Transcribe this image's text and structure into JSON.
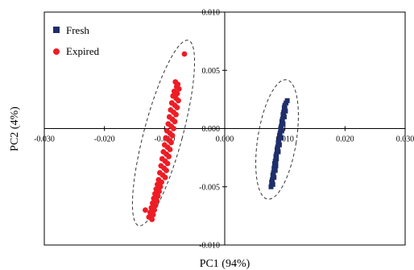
{
  "chart_data": {
    "type": "scatter",
    "title": "",
    "xlabel": "PC1 (94%)",
    "ylabel": "PC2 (4%)",
    "xlim": [
      -0.03,
      0.03
    ],
    "ylim": [
      -0.01,
      0.01
    ],
    "x_ticks": [
      "-0.030",
      "-0.020",
      "-0.010",
      "0.000",
      "0.010",
      "0.020",
      "0.030"
    ],
    "y_ticks": [
      "0.010",
      "0.005",
      "0.000",
      "-0.005",
      "-0.010"
    ],
    "legend_position": "top-left",
    "grid": false,
    "confidence_ellipses": true,
    "series": [
      {
        "name": "Fresh",
        "marker": "square",
        "color": "#1f2e6b",
        "x": [
          0.0104,
          0.0102,
          0.01,
          0.0099,
          0.01,
          0.0098,
          0.0097,
          0.0099,
          0.0096,
          0.0095,
          0.0097,
          0.0094,
          0.0093,
          0.0095,
          0.0092,
          0.0091,
          0.0093,
          0.009,
          0.0089,
          0.0091,
          0.0088,
          0.0087,
          0.0089,
          0.0086,
          0.0085,
          0.0086,
          0.0084,
          0.0083,
          0.0085,
          0.0082,
          0.0084,
          0.0081,
          0.008,
          0.0082,
          0.0079,
          0.0078,
          0.008,
          0.0077,
          0.0085,
          0.0094,
          0.0101,
          0.0088
        ],
        "y": [
          0.0024,
          0.0022,
          0.002,
          0.0018,
          0.0016,
          0.0014,
          0.0012,
          0.001,
          0.0008,
          0.0006,
          0.0004,
          0.0002,
          0.0,
          -0.0002,
          -0.0004,
          -0.0006,
          -0.0008,
          -0.001,
          -0.0012,
          -0.0014,
          -0.0016,
          -0.0018,
          -0.002,
          -0.0022,
          -0.0024,
          -0.0026,
          -0.0028,
          -0.003,
          -0.0032,
          -0.0034,
          -0.0036,
          -0.0038,
          -0.004,
          -0.0042,
          -0.0044,
          -0.0046,
          -0.0048,
          -0.005,
          -0.003,
          -0.0008,
          0.0015,
          -0.0016
        ]
      },
      {
        "name": "Expired",
        "marker": "circle",
        "color": "#ee1c25",
        "x": [
          -0.0067,
          -0.0082,
          -0.0078,
          -0.008,
          -0.0076,
          -0.0084,
          -0.0079,
          -0.0086,
          -0.0081,
          -0.0077,
          -0.0088,
          -0.0083,
          -0.0079,
          -0.009,
          -0.0085,
          -0.0081,
          -0.0092,
          -0.0087,
          -0.0083,
          -0.0094,
          -0.0089,
          -0.0085,
          -0.0096,
          -0.0091,
          -0.0087,
          -0.0098,
          -0.0093,
          -0.0089,
          -0.01,
          -0.0095,
          -0.0091,
          -0.0102,
          -0.0097,
          -0.0093,
          -0.0104,
          -0.0099,
          -0.0095,
          -0.0106,
          -0.0101,
          -0.0097,
          -0.0108,
          -0.0103,
          -0.0099,
          -0.011,
          -0.0105,
          -0.0112,
          -0.0107,
          -0.0114,
          -0.0109,
          -0.0116,
          -0.0111,
          -0.0118,
          -0.0113,
          -0.012,
          -0.0115,
          -0.0122,
          -0.0117,
          -0.0124,
          -0.0119,
          -0.0126,
          -0.0121,
          -0.0132
        ],
        "y": [
          0.0064,
          0.004,
          0.0038,
          0.0036,
          0.0034,
          0.0032,
          0.003,
          0.0028,
          0.0026,
          0.0024,
          0.0022,
          0.002,
          0.0018,
          0.0016,
          0.0014,
          0.0012,
          0.001,
          0.0008,
          0.0006,
          0.0004,
          0.0002,
          0.0,
          -0.0002,
          -0.0004,
          -0.0006,
          -0.0008,
          -0.001,
          -0.0012,
          -0.0014,
          -0.0016,
          -0.0018,
          -0.002,
          -0.0022,
          -0.0024,
          -0.0026,
          -0.0028,
          -0.003,
          -0.0032,
          -0.0034,
          -0.0036,
          -0.0038,
          -0.004,
          -0.0042,
          -0.0044,
          -0.0046,
          -0.0048,
          -0.005,
          -0.0052,
          -0.0054,
          -0.0056,
          -0.0058,
          -0.006,
          -0.0062,
          -0.0064,
          -0.0066,
          -0.0068,
          -0.007,
          -0.0072,
          -0.0074,
          -0.0076,
          -0.0078,
          -0.007
        ]
      }
    ]
  }
}
